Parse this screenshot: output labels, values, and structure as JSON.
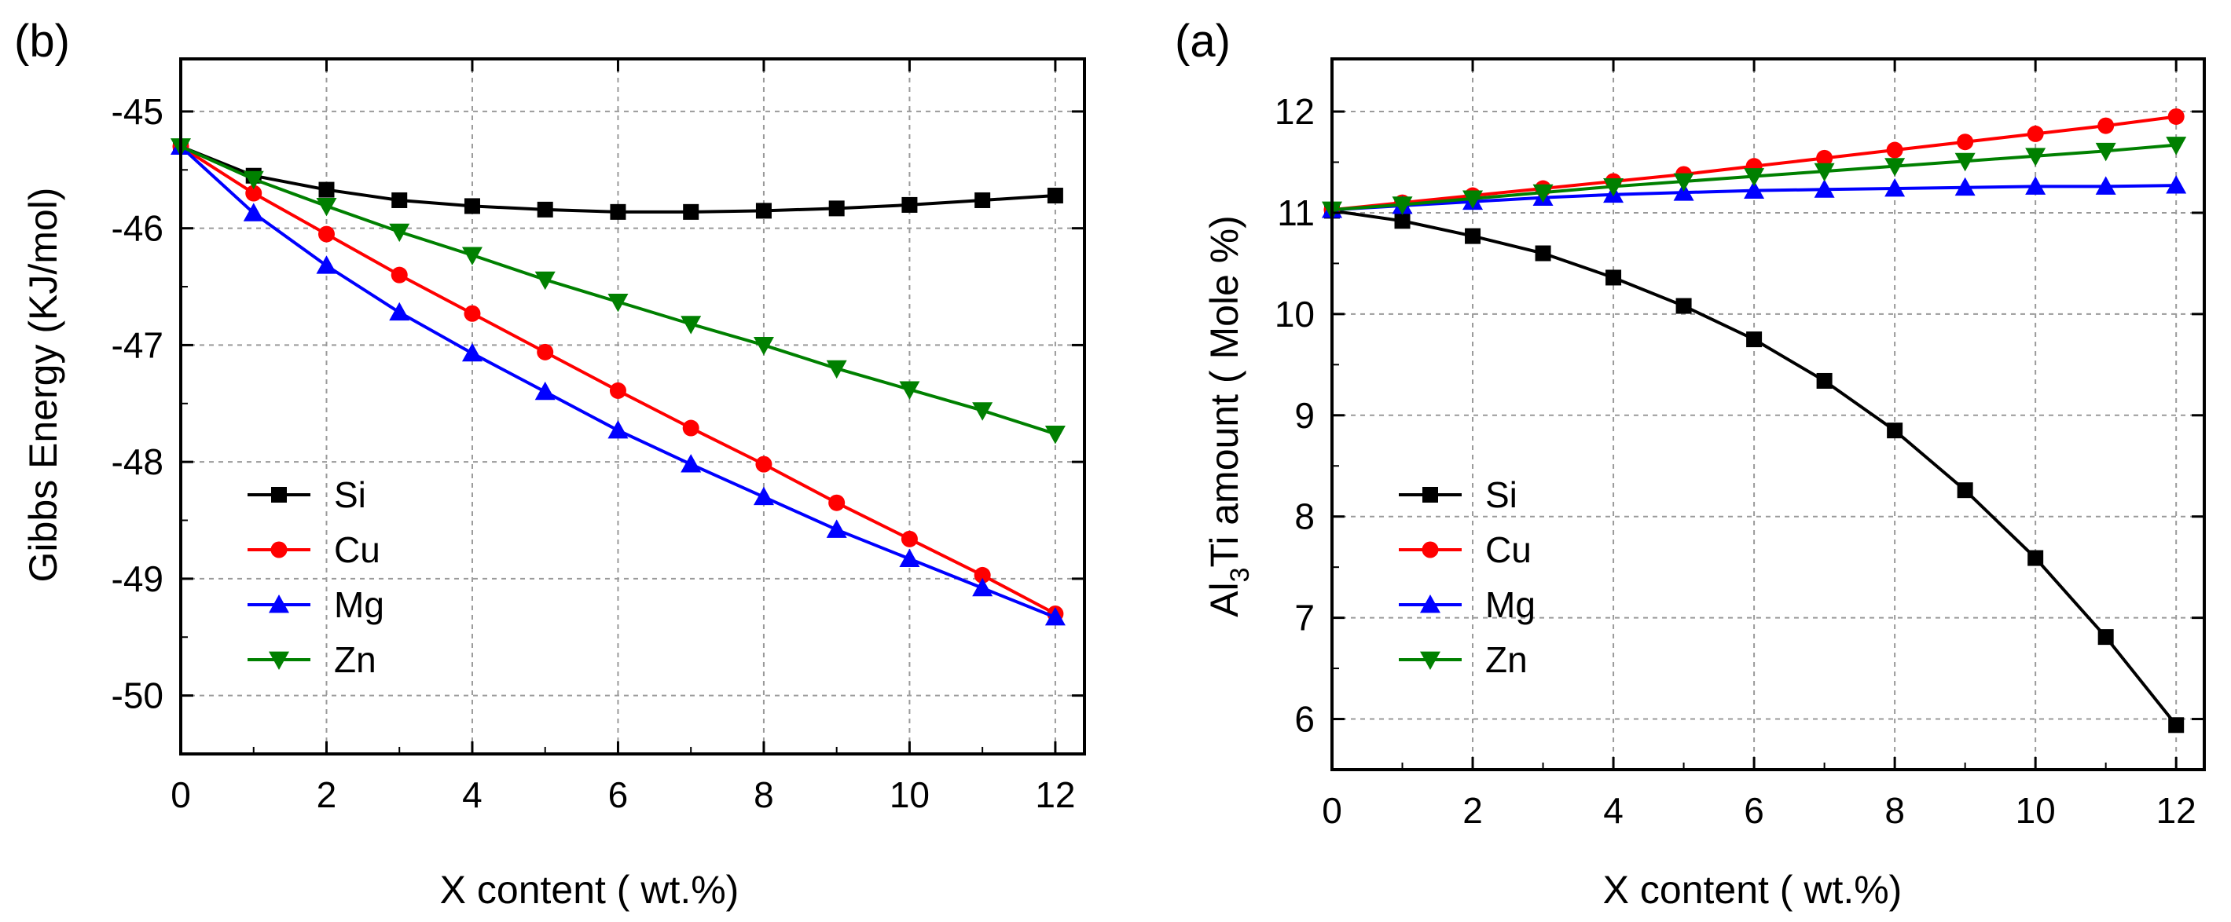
{
  "chart_data": [
    {
      "type": "line",
      "panel_label": "(b)",
      "xlabel": "X  content ( wt.%)",
      "ylabel": "Gibbs Energy (KJ/mol)",
      "ylabel_parts": {
        "pre": "Gibbs Energy (KJ/mol)",
        "sub": "",
        "post": ""
      },
      "xlim": [
        0,
        12.4
      ],
      "ylim": [
        -50.5,
        -44.55
      ],
      "xticks": [
        0,
        2,
        4,
        6,
        8,
        10,
        12
      ],
      "yticks": [
        -50,
        -49,
        -48,
        -47,
        -46,
        -45
      ],
      "grid": true,
      "legend_position": "lower-left",
      "x": [
        0,
        1,
        2,
        3,
        4,
        5,
        6,
        7,
        8,
        9,
        10,
        11,
        12
      ],
      "series": [
        {
          "name": "Si",
          "color": "#000000",
          "marker": "square",
          "values": [
            -45.3,
            -45.55,
            -45.67,
            -45.76,
            -45.81,
            -45.84,
            -45.86,
            -45.86,
            -45.85,
            -45.83,
            -45.8,
            -45.76,
            -45.72
          ]
        },
        {
          "name": "Cu",
          "color": "#ff0000",
          "marker": "circle",
          "values": [
            -45.3,
            -45.7,
            -46.05,
            -46.4,
            -46.73,
            -47.06,
            -47.39,
            -47.71,
            -48.02,
            -48.35,
            -48.66,
            -48.97,
            -49.3
          ]
        },
        {
          "name": "Mg",
          "color": "#0000ff",
          "marker": "triangle-up",
          "values": [
            -45.3,
            -45.87,
            -46.32,
            -46.72,
            -47.07,
            -47.4,
            -47.73,
            -48.02,
            -48.3,
            -48.58,
            -48.83,
            -49.08,
            -49.33
          ]
        },
        {
          "name": "Zn",
          "color": "#008000",
          "marker": "triangle-down",
          "values": [
            -45.3,
            -45.58,
            -45.81,
            -46.03,
            -46.23,
            -46.44,
            -46.63,
            -46.82,
            -47.0,
            -47.2,
            -47.38,
            -47.56,
            -47.76
          ]
        }
      ]
    },
    {
      "type": "line",
      "panel_label": "(a)",
      "xlabel": "X  content ( wt.%)",
      "ylabel": "Al3Ti amount  ( Mole %)",
      "ylabel_parts": {
        "pre": "Al",
        "sub": "3",
        "post": "Ti amount  ( Mole %)"
      },
      "xlim": [
        0,
        12.4
      ],
      "ylim": [
        5.5,
        12.52
      ],
      "xticks": [
        0,
        2,
        4,
        6,
        8,
        10,
        12
      ],
      "yticks": [
        6,
        7,
        8,
        9,
        10,
        11,
        12
      ],
      "grid": true,
      "legend_position": "lower-left",
      "x": [
        0,
        1,
        2,
        3,
        4,
        5,
        6,
        7,
        8,
        9,
        10,
        11,
        12
      ],
      "series": [
        {
          "name": "Si",
          "color": "#000000",
          "marker": "square",
          "values": [
            11.02,
            10.92,
            10.77,
            10.6,
            10.36,
            10.08,
            9.75,
            9.34,
            8.85,
            8.26,
            7.59,
            6.81,
            5.94
          ]
        },
        {
          "name": "Cu",
          "color": "#ff0000",
          "marker": "circle",
          "values": [
            11.03,
            11.1,
            11.17,
            11.24,
            11.31,
            11.38,
            11.46,
            11.54,
            11.62,
            11.7,
            11.78,
            11.86,
            11.95
          ]
        },
        {
          "name": "Mg",
          "color": "#0000ff",
          "marker": "triangle-up",
          "values": [
            11.03,
            11.07,
            11.11,
            11.15,
            11.18,
            11.2,
            11.22,
            11.23,
            11.24,
            11.25,
            11.26,
            11.26,
            11.27
          ]
        },
        {
          "name": "Zn",
          "color": "#008000",
          "marker": "triangle-down",
          "values": [
            11.03,
            11.08,
            11.14,
            11.2,
            11.26,
            11.31,
            11.36,
            11.41,
            11.46,
            11.51,
            11.56,
            11.61,
            11.67
          ]
        }
      ]
    }
  ]
}
